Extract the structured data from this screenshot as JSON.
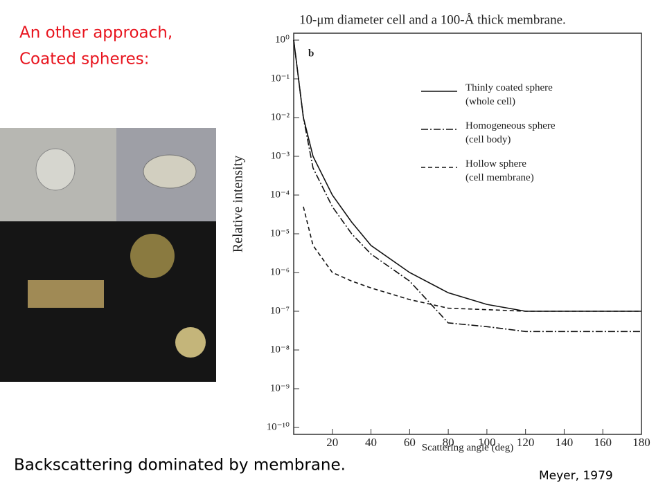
{
  "slide": {
    "heading": [
      "An other approach,",
      "Coated spheres:"
    ],
    "caption": "Backscattering dominated by membrane.",
    "credit": "Meyer, 1979"
  },
  "chart_data": {
    "type": "line",
    "title": "10-μm diameter cell and a 100-Å thick membrane.",
    "panel": "b",
    "x_label": "Scattering angle (deg)",
    "y_label": "Relative intensity",
    "log_y": true,
    "x": [
      0,
      5,
      10,
      20,
      30,
      40,
      60,
      80,
      100,
      120,
      140,
      160,
      180
    ],
    "series": [
      {
        "name": "Thinly coated sphere (whole cell)",
        "color": "#111111",
        "dash": "none",
        "values": [
          1,
          0.01,
          0.001,
          0.0001,
          2e-05,
          5e-06,
          1e-06,
          3e-07,
          1.5e-07,
          1e-07,
          1e-07,
          1e-07,
          1e-07
        ]
      },
      {
        "name": "Homogeneous sphere (cell body)",
        "color": "#111111",
        "dash": "10 3 2 3",
        "values": [
          1,
          0.01,
          0.0005,
          5e-05,
          1e-05,
          3e-06,
          6e-07,
          5e-08,
          4e-08,
          3e-08,
          3e-08,
          3e-08,
          3e-08
        ]
      },
      {
        "name": "Hollow sphere (cell membrane)",
        "color": "#111111",
        "dash": "6 4",
        "values": [
          null,
          5e-05,
          5e-06,
          1e-06,
          6e-07,
          4e-07,
          2e-07,
          1.2e-07,
          1.1e-07,
          1e-07,
          1e-07,
          1e-07,
          1e-07
        ]
      }
    ],
    "xlim": [
      0,
      180
    ],
    "xticks": [
      20,
      40,
      60,
      80,
      100,
      120,
      140,
      160,
      180
    ],
    "ylim": [
      1e-10,
      1
    ],
    "yticks": [
      {
        "value": 1,
        "label": "10⁰"
      },
      {
        "value": 0.1,
        "label": "10⁻¹"
      },
      {
        "value": 0.01,
        "label": "10⁻²"
      },
      {
        "value": 0.001,
        "label": "10⁻³"
      },
      {
        "value": 0.0001,
        "label": "10⁻⁴"
      },
      {
        "value": 1e-05,
        "label": "10⁻⁵"
      },
      {
        "value": 1e-06,
        "label": "10⁻⁶"
      },
      {
        "value": 1e-07,
        "label": "10⁻⁷"
      },
      {
        "value": 1e-08,
        "label": "10⁻⁸"
      },
      {
        "value": 1e-09,
        "label": "10⁻⁹"
      },
      {
        "value": 1e-10,
        "label": "10⁻¹⁰"
      }
    ]
  }
}
